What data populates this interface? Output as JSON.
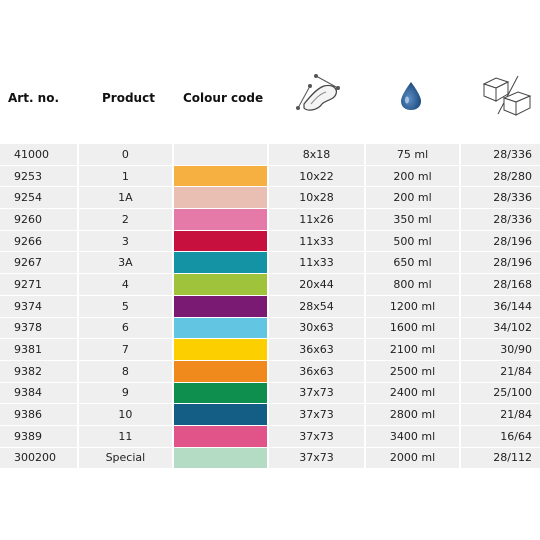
{
  "headers": {
    "art_no": "Art. no.",
    "product": "Product",
    "colour_code": "Colour code",
    "size_icon": "pad-size-icon",
    "volume_icon": "drop-icon",
    "pack_icon": "box-pack-icon"
  },
  "rows": [
    {
      "art": "41000",
      "product": "0",
      "color": "#efefef",
      "size": "8x18",
      "volume": "75 ml",
      "pack": "28/336"
    },
    {
      "art": "9253",
      "product": "1",
      "color": "#f5b041",
      "size": "10x22",
      "volume": "200 ml",
      "pack": "28/280"
    },
    {
      "art": "9254",
      "product": "1A",
      "color": "#e9bfb3",
      "size": "10x28",
      "volume": "200 ml",
      "pack": "28/336"
    },
    {
      "art": "9260",
      "product": "2",
      "color": "#e57aa9",
      "size": "11x26",
      "volume": "350 ml",
      "pack": "28/336"
    },
    {
      "art": "9266",
      "product": "3",
      "color": "#c8103e",
      "size": "11x33",
      "volume": "500 ml",
      "pack": "28/196"
    },
    {
      "art": "9267",
      "product": "3A",
      "color": "#1493a4",
      "size": "11x33",
      "volume": "650 ml",
      "pack": "28/196"
    },
    {
      "art": "9271",
      "product": "4",
      "color": "#9fc33a",
      "size": "20x44",
      "volume": "800 ml",
      "pack": "28/168"
    },
    {
      "art": "9374",
      "product": "5",
      "color": "#7a1a73",
      "size": "28x54",
      "volume": "1200 ml",
      "pack": "36/144"
    },
    {
      "art": "9378",
      "product": "6",
      "color": "#62c6e2",
      "size": "30x63",
      "volume": "1600 ml",
      "pack": "34/102"
    },
    {
      "art": "9381",
      "product": "7",
      "color": "#fcd000",
      "size": "36x63",
      "volume": "2100 ml",
      "pack": "30/90"
    },
    {
      "art": "9382",
      "product": "8",
      "color": "#f08a1c",
      "size": "36x63",
      "volume": "2500 ml",
      "pack": "21/84"
    },
    {
      "art": "9384",
      "product": "9",
      "color": "#0f8f4e",
      "size": "37x73",
      "volume": "2400 ml",
      "pack": "25/100"
    },
    {
      "art": "9386",
      "product": "10",
      "color": "#145e85",
      "size": "37x73",
      "volume": "2800 ml",
      "pack": "21/84"
    },
    {
      "art": "9389",
      "product": "11",
      "color": "#e0548a",
      "size": "37x73",
      "volume": "3400 ml",
      "pack": "16/64"
    },
    {
      "art": "300200",
      "product": "Special",
      "color": "#b4dcc4",
      "size": "37x73",
      "volume": "2000 ml",
      "pack": "28/112"
    }
  ]
}
